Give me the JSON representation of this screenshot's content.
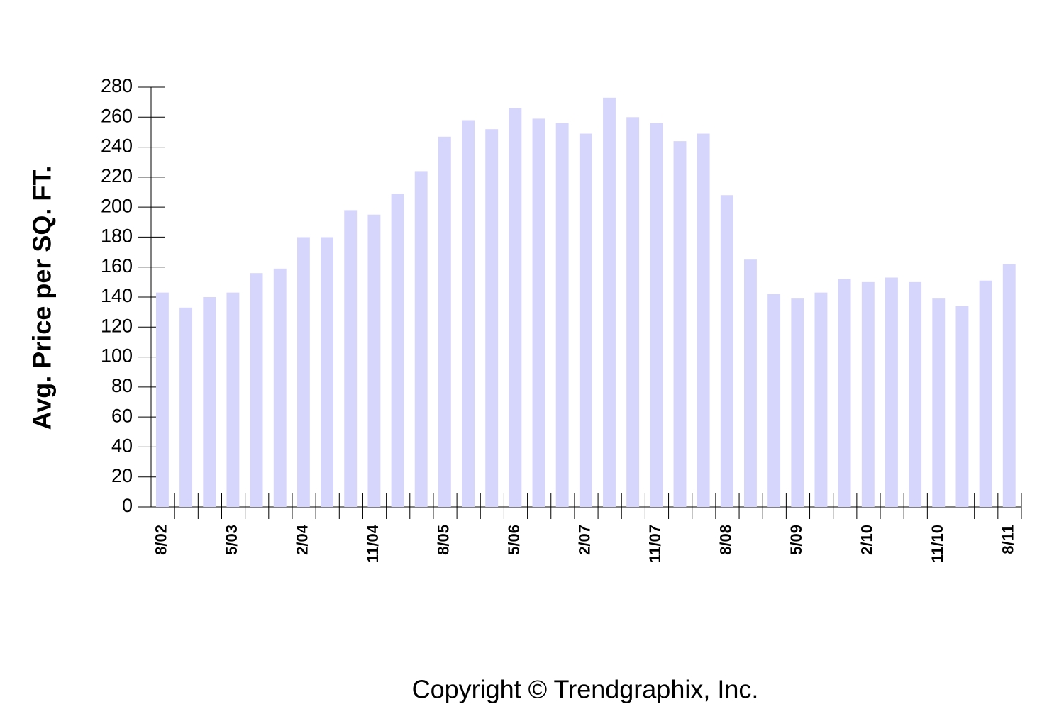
{
  "chart_data": {
    "type": "bar",
    "y_label": "Avg. Price per SQ. FT.",
    "copyright": "Copyright © Trendgraphix, Inc.",
    "categories": [
      "8/02",
      null,
      null,
      "5/03",
      null,
      null,
      "2/04",
      null,
      null,
      "11/04",
      null,
      null,
      "8/05",
      null,
      null,
      "5/06",
      null,
      null,
      "2/07",
      null,
      null,
      "11/07",
      null,
      null,
      "8/08",
      null,
      null,
      "5/09",
      null,
      null,
      "2/10",
      null,
      null,
      "11/10",
      null,
      null,
      "8/11"
    ],
    "values": [
      143,
      133,
      140,
      143,
      156,
      159,
      180,
      180,
      198,
      195,
      209,
      224,
      247,
      258,
      252,
      266,
      259,
      256,
      249,
      273,
      260,
      256,
      244,
      249,
      208,
      165,
      142,
      139,
      143,
      152,
      150,
      153,
      150,
      139,
      134,
      151,
      162
    ],
    "color": "#d6d6fc",
    "ylim": [
      0,
      280
    ],
    "yticks": [
      0,
      20,
      40,
      60,
      80,
      100,
      120,
      140,
      160,
      180,
      200,
      220,
      240,
      260,
      280
    ],
    "grid": false
  }
}
